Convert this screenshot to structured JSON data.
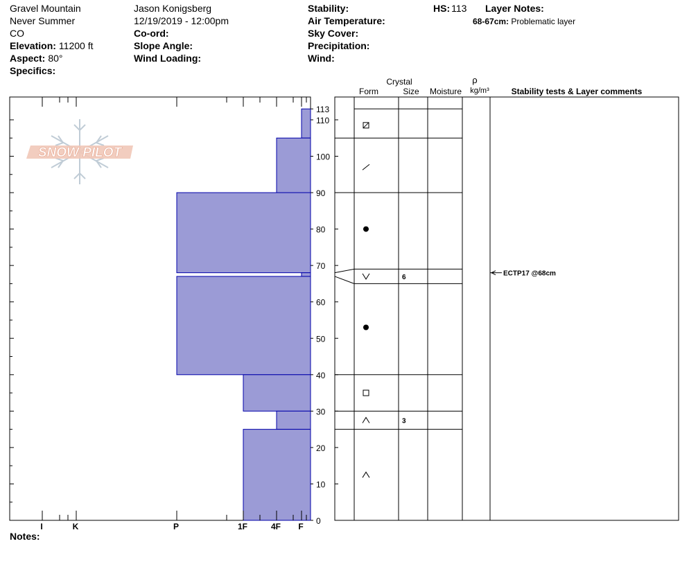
{
  "header": {
    "location": "Gravel Mountain",
    "range": "Never Summer",
    "state": "CO",
    "elevation_label": "Elevation:",
    "elevation": "11200 ft",
    "aspect_label": "Aspect:",
    "aspect": "80°",
    "specifics_label": "Specifics:",
    "observer": "Jason Konigsberg",
    "datetime": "12/19/2019 - 12:00pm",
    "coord_label": "Co-ord:",
    "slope_label": "Slope Angle:",
    "wind_loading_label": "Wind Loading:",
    "stability_label": "Stability:",
    "air_temp_label": "Air Temperature:",
    "sky_label": "Sky Cover:",
    "precip_label": "Precipitation:",
    "wind_label": "Wind:",
    "hs_label": "HS:",
    "hs_value": "113",
    "layer_notes_label": "Layer Notes:",
    "layer_note_range": "68-67cm:",
    "layer_note_text": "Problematic layer"
  },
  "logo": {
    "text": "SNOW PILOT"
  },
  "columns": {
    "crystal": "Crystal",
    "form": "Form",
    "size": "Size",
    "moisture": "Moisture",
    "rho": "ρ",
    "density_unit": "kg/m³",
    "stability_comments": "Stability tests & Layer comments"
  },
  "notes_label": "Notes:",
  "colors": {
    "hardness_fill": "#9b9bd6",
    "hardness_stroke": "#0000aa"
  },
  "chart_data": {
    "type": "bar",
    "hardness_axis": [
      "I",
      "K",
      "P",
      "1F",
      "4F",
      "F"
    ],
    "depth_axis": {
      "min": 0,
      "max": 113,
      "ticks": [
        0,
        10,
        20,
        30,
        40,
        50,
        60,
        70,
        80,
        90,
        100,
        110,
        113
      ]
    },
    "hardness_layers": [
      {
        "top": 113,
        "bottom": 105,
        "hardness": "F"
      },
      {
        "top": 105,
        "bottom": 90,
        "hardness": "4F"
      },
      {
        "top": 90,
        "bottom": 68,
        "hardness": "P"
      },
      {
        "top": 68,
        "bottom": 67,
        "hardness": "F"
      },
      {
        "top": 67,
        "bottom": 40,
        "hardness": "P"
      },
      {
        "top": 40,
        "bottom": 30,
        "hardness": "1F"
      },
      {
        "top": 30,
        "bottom": 25,
        "hardness": "4F"
      },
      {
        "top": 25,
        "bottom": 0,
        "hardness": "1F"
      }
    ],
    "layer_boundaries": [
      113,
      105,
      90,
      69,
      65,
      40,
      30,
      25
    ],
    "crystal_layers": [
      {
        "top": 113,
        "bottom": 105,
        "form": "MF",
        "size": ""
      },
      {
        "top": 105,
        "bottom": 90,
        "form": "DF",
        "size": ""
      },
      {
        "top": 90,
        "bottom": 69,
        "form": "RG",
        "size": ""
      },
      {
        "top": 69,
        "bottom": 65,
        "form": "DH",
        "size": "6"
      },
      {
        "top": 65,
        "bottom": 40,
        "form": "RG",
        "size": ""
      },
      {
        "top": 40,
        "bottom": 30,
        "form": "FC",
        "size": ""
      },
      {
        "top": 30,
        "bottom": 25,
        "form": "FCxr",
        "size": "3"
      },
      {
        "top": 25,
        "bottom": 0,
        "form": "FCxr",
        "size": ""
      }
    ],
    "stability_tests": [
      {
        "depth": 68,
        "text": "ECTP17 @68cm"
      }
    ]
  }
}
